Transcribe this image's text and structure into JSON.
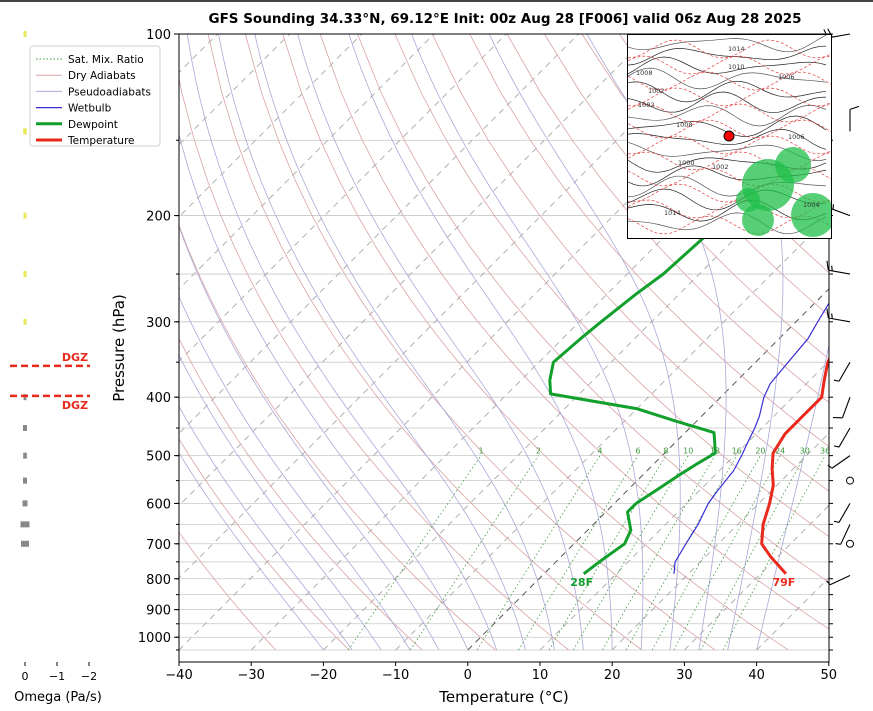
{
  "title": "GFS Sounding 34.33°N, 69.12°E Init: 00z Aug 28 [F006] valid 06z Aug 28 2025",
  "colors": {
    "temperature": "#e8291c",
    "dewpoint": "#12a02c",
    "wetbulb": "#3a2fd6",
    "dry_adiabat": "#d9a3a3",
    "pseudoadiabat": "#a9a9d9",
    "mixing_ratio": "#3c9a3c",
    "isotherm": "#9a9a9a",
    "dgz": "#e8291c"
  },
  "chart_data": {
    "type": "line",
    "subtype": "skew-t log-p sounding",
    "xlabel": "Temperature (°C)",
    "ylabel": "Pressure (hPa)",
    "xlim": [
      -40,
      50
    ],
    "ylim": [
      1050,
      100
    ],
    "y_scale": "log",
    "x_ticks": [
      -40,
      -30,
      -20,
      -10,
      0,
      10,
      20,
      30,
      40,
      50
    ],
    "y_ticks": [
      100,
      200,
      300,
      400,
      500,
      600,
      700,
      800,
      900,
      1000
    ],
    "grid": true,
    "legend_position": "top-left",
    "legend": [
      "Sat. Mix. Ratio",
      "Dry Adiabats",
      "Pseudoadiabats",
      "Wetbulb",
      "Dewpoint",
      "Temperature"
    ],
    "mixing_ratio_labels": [
      "1",
      "2",
      "4",
      "6",
      "8",
      "10",
      "13",
      "16",
      "20",
      "24",
      "30",
      "36"
    ],
    "surface_labels": {
      "temperature": "79F",
      "dewpoint": "28F"
    },
    "series": [
      {
        "name": "Temperature",
        "points": [
          [
            33.5,
            785
          ],
          [
            29,
            735
          ],
          [
            26,
            700
          ],
          [
            23.5,
            650
          ],
          [
            21.5,
            600
          ],
          [
            19.5,
            560
          ],
          [
            17,
            525
          ],
          [
            15,
            495
          ],
          [
            14,
            460
          ],
          [
            14,
            430
          ],
          [
            14,
            400
          ],
          [
            12,
            375
          ],
          [
            10,
            350
          ],
          [
            8.5,
            320
          ],
          [
            7,
            295
          ],
          [
            5,
            270
          ],
          [
            3,
            245
          ],
          [
            0,
            220
          ],
          [
            -2,
            200
          ],
          [
            -4,
            185
          ],
          [
            -6,
            170
          ],
          [
            -7.5,
            155
          ],
          [
            -9,
            140
          ],
          [
            -10,
            125
          ],
          [
            -11,
            112
          ],
          [
            -12,
            100
          ]
        ]
      },
      {
        "name": "Dewpoint",
        "points": [
          [
            5.5,
            785
          ],
          [
            6,
            750
          ],
          [
            7,
            700
          ],
          [
            6,
            665
          ],
          [
            3,
            620
          ],
          [
            3,
            600
          ],
          [
            4,
            570
          ],
          [
            5,
            540
          ],
          [
            6,
            515
          ],
          [
            7,
            495
          ],
          [
            5,
            470
          ],
          [
            4,
            458
          ],
          [
            -3,
            438
          ],
          [
            -10,
            418
          ],
          [
            -24,
            395
          ],
          [
            -26,
            375
          ],
          [
            -28,
            350
          ],
          [
            -27.5,
            320
          ],
          [
            -27,
            300
          ],
          [
            -26,
            270
          ],
          [
            -25,
            250
          ],
          [
            -24.5,
            220
          ],
          [
            -24,
            200
          ],
          [
            -23.5,
            175
          ],
          [
            -23,
            155
          ],
          [
            -22.5,
            145
          ],
          [
            -21,
            125
          ],
          [
            -20,
            110
          ],
          [
            -19,
            100
          ]
        ]
      },
      {
        "name": "Wetbulb",
        "points": [
          [
            18,
            785
          ],
          [
            16.5,
            750
          ],
          [
            15.5,
            700
          ],
          [
            14.5,
            650
          ],
          [
            13,
            600
          ],
          [
            12.5,
            570
          ],
          [
            12,
            530
          ],
          [
            11,
            500
          ],
          [
            10,
            475
          ],
          [
            9,
            450
          ],
          [
            8,
            430
          ],
          [
            6,
            400
          ],
          [
            5,
            380
          ],
          [
            4.5,
            350
          ],
          [
            4,
            320
          ],
          [
            3,
            300
          ],
          [
            1.5,
            270
          ],
          [
            0.5,
            245
          ],
          [
            -2,
            220
          ],
          [
            -4,
            200
          ],
          [
            -6,
            180
          ],
          [
            -7.5,
            160
          ],
          [
            -8.5,
            150
          ]
        ]
      }
    ],
    "dgz": {
      "label": "DGZ",
      "pressures": [
        355,
        398
      ]
    },
    "omega": {
      "xlabel": "Omega (Pa/s)",
      "x_ticks": [
        "0",
        "−1",
        "−2"
      ],
      "levels": [
        [
          100,
          0.05
        ],
        [
          145,
          0.08
        ],
        [
          200,
          0.05
        ],
        [
          250,
          0.06
        ],
        [
          300,
          0.05
        ],
        [
          400,
          0.05
        ],
        [
          450,
          0.1
        ],
        [
          500,
          0.08
        ],
        [
          550,
          0.1
        ],
        [
          600,
          0.15
        ],
        [
          650,
          0.35
        ],
        [
          700,
          0.3
        ]
      ]
    },
    "wind_barbs": [
      {
        "p": 100,
        "spd": 20,
        "dir": 260
      },
      {
        "p": 145,
        "spd": 10,
        "dir": 0
      },
      {
        "p": 200,
        "spd": 15,
        "dir": 290
      },
      {
        "p": 250,
        "spd": 15,
        "dir": 280
      },
      {
        "p": 300,
        "spd": 15,
        "dir": 280
      },
      {
        "p": 350,
        "spd": 5,
        "dir": 210
      },
      {
        "p": 400,
        "spd": 10,
        "dir": 200
      },
      {
        "p": 450,
        "spd": 5,
        "dir": 210
      },
      {
        "p": 500,
        "spd": 5,
        "dir": 235
      },
      {
        "p": 550,
        "spd": 0,
        "dir": 0
      },
      {
        "p": 600,
        "spd": 5,
        "dir": 210
      },
      {
        "p": 650,
        "spd": 5,
        "dir": 205
      },
      {
        "p": 700,
        "spd": 0,
        "dir": 0
      },
      {
        "p": 790,
        "spd": 5,
        "dir": 245
      }
    ]
  },
  "inset_map": {
    "isobar_labels": [
      "1014",
      "1010",
      "1006",
      "1002",
      "1008",
      "1000",
      "1002",
      "1004",
      "1014",
      "1002",
      "1008",
      "1006"
    ]
  }
}
